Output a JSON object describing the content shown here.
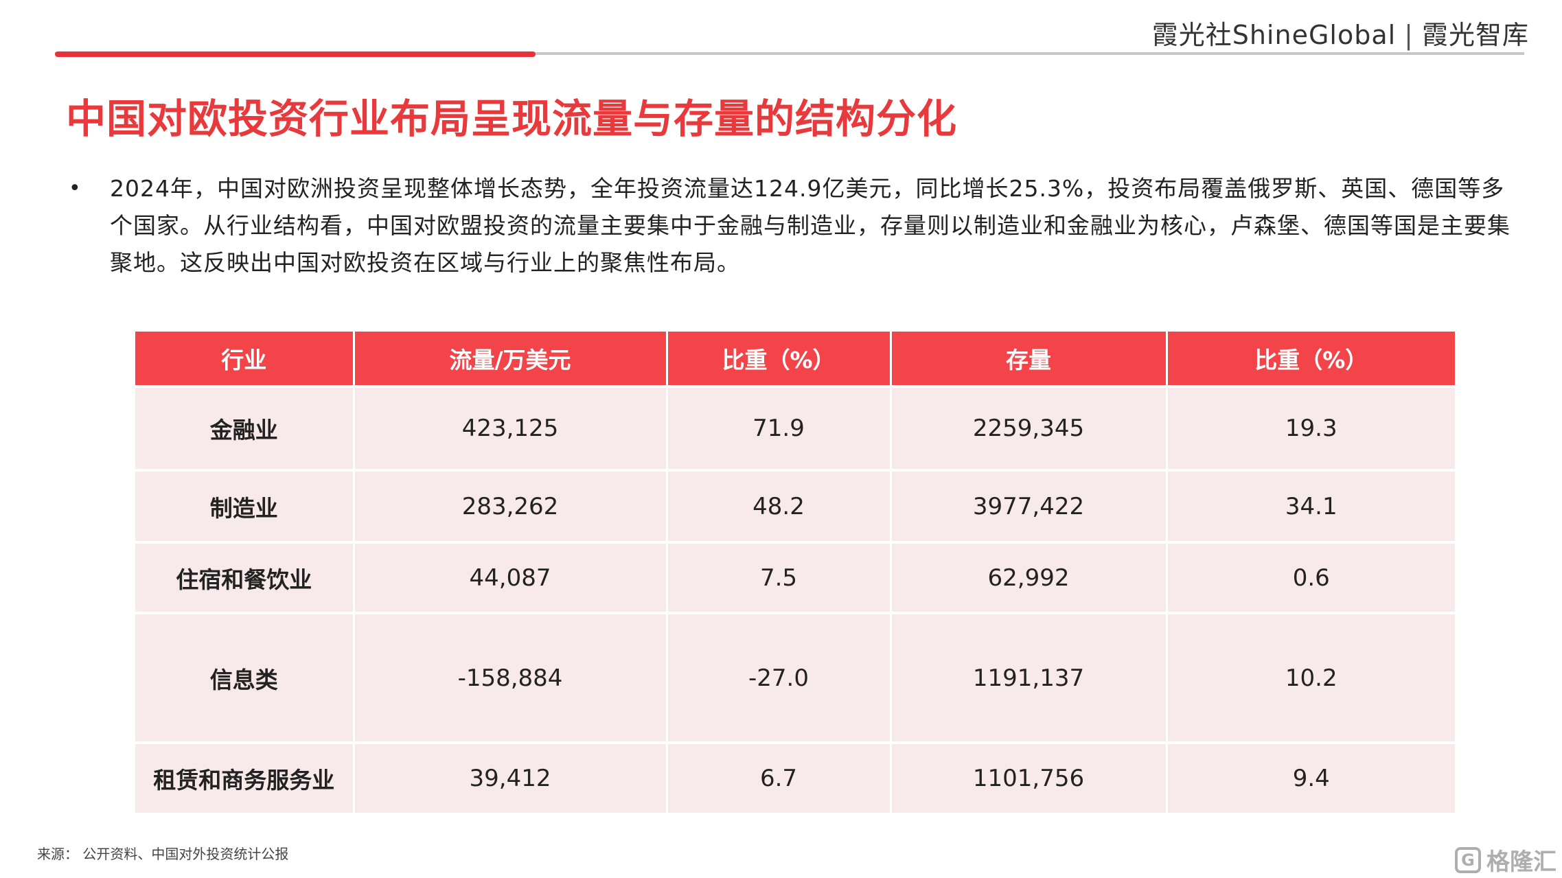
{
  "header": {
    "brand_primary": "霞光社ShineGlobal",
    "brand_separator": "|",
    "brand_secondary": "霞光智库"
  },
  "title": "中国对欧投资行业布局呈现流量与存量的结构分化",
  "bullet": {
    "marker": "•",
    "text": "2024年，中国对欧洲投资呈现整体增长态势，全年投资流量达124.9亿美元，同比增长25.3%，投资布局覆盖俄罗斯、英国、德国等多个国家。从行业结构看，中国对欧盟投资的流量主要集中于金融与制造业，存量则以制造业和金融业为核心，卢森堡、德国等国是主要集聚地。这反映出中国对欧投资在区域与行业上的聚焦性布局。"
  },
  "table": {
    "headers": [
      "行业",
      "流量/万美元",
      "比重（%）",
      "存量",
      "比重（%）"
    ],
    "rows": [
      [
        "金融业",
        "423,125",
        "71.9",
        "2259,345",
        "19.3"
      ],
      [
        "制造业",
        "283,262",
        "48.2",
        "3977,422",
        "34.1"
      ],
      [
        "住宿和餐饮业",
        "44,087",
        "7.5",
        "62,992",
        "0.6"
      ],
      [
        "信息类",
        "-158,884",
        "-27.0",
        "1191,137",
        "10.2"
      ],
      [
        "租赁和商务服务业",
        "39,412",
        "6.7",
        "1101,756",
        "9.4"
      ]
    ]
  },
  "source": "来源：  公开资料、中国对外投资统计公报",
  "watermark": {
    "icon": "gelonghui-logo-icon",
    "icon_glyph": "G",
    "text": "格隆汇"
  },
  "colors": {
    "accent_red": "#e83a3c",
    "header_red": "#f24449",
    "row_pink": "#f8e9ea"
  }
}
